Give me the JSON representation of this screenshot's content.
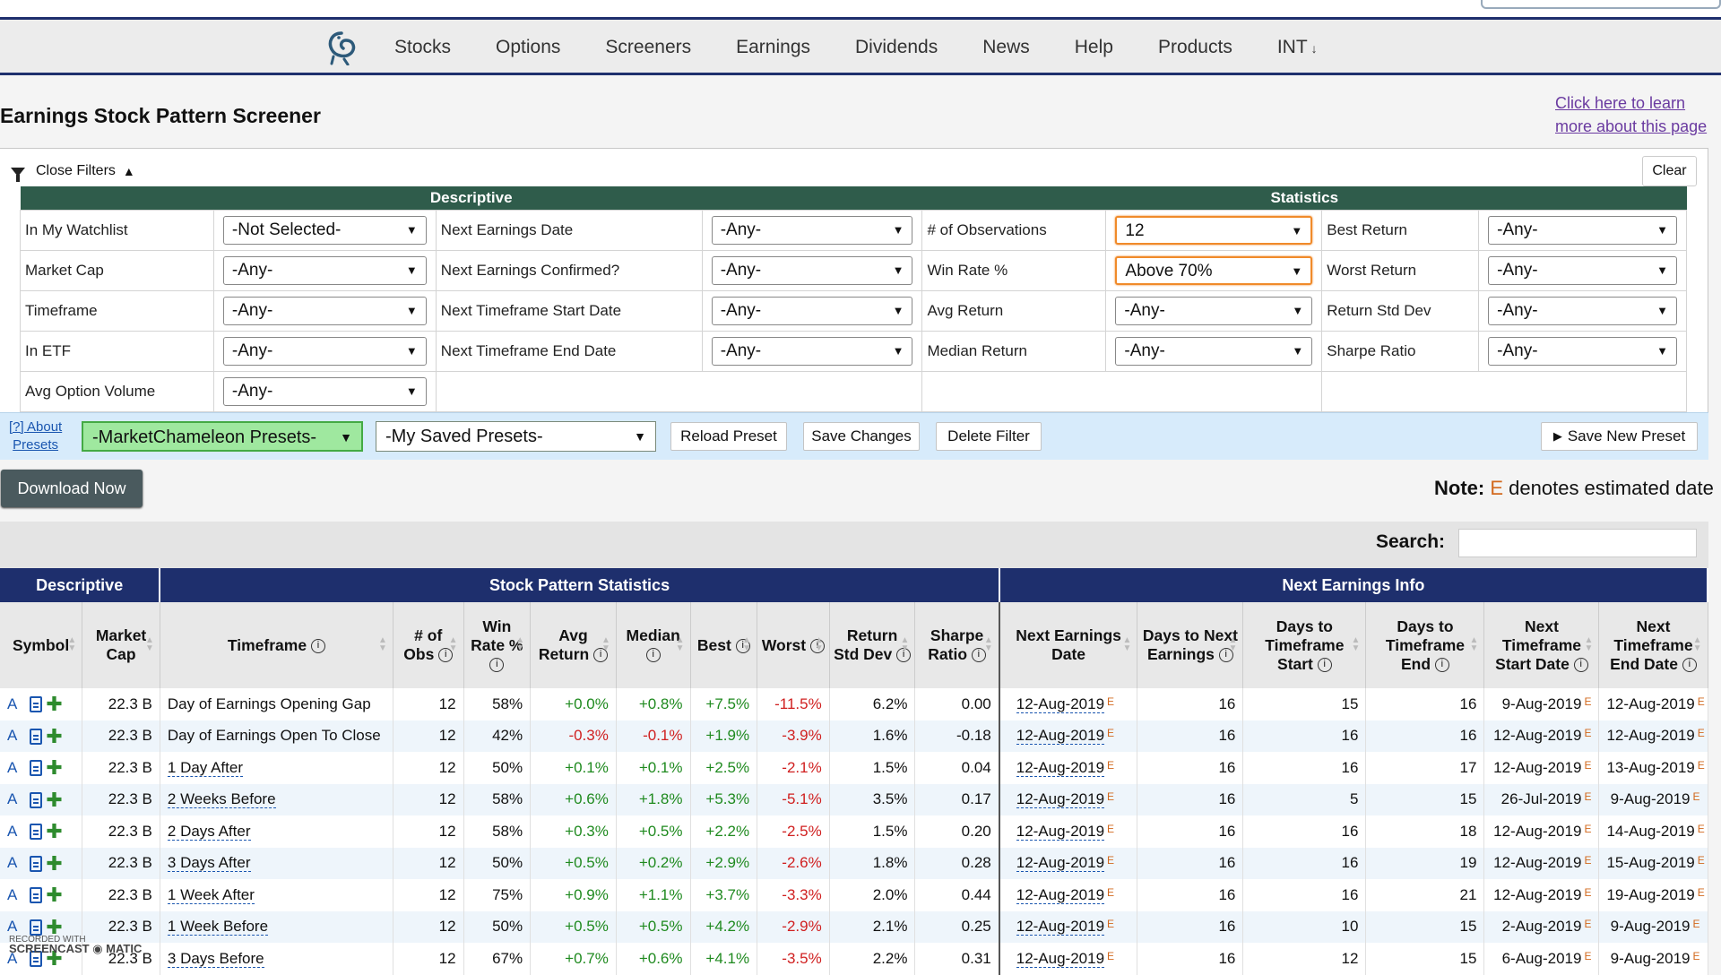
{
  "nav": {
    "items": [
      "Stocks",
      "Options",
      "Screeners",
      "Earnings",
      "Dividends",
      "News",
      "Help",
      "Products",
      "INT"
    ],
    "int_caret": "↓"
  },
  "page": {
    "title": "Earnings Stock Pattern Screener",
    "learn_link": "Click here to learn more about this page"
  },
  "filters": {
    "close_label": "Close Filters",
    "clear_label": "Clear",
    "headers": {
      "descriptive": "Descriptive",
      "statistics": "Statistics"
    },
    "rows": [
      [
        {
          "label": "In My Watchlist",
          "value": "-Not Selected-"
        },
        {
          "label": "Next Earnings Date",
          "value": "-Any-"
        },
        {
          "label": "# of Observations",
          "value": "12"
        },
        {
          "label": "Best Return",
          "value": "-Any-"
        }
      ],
      [
        {
          "label": "Market Cap",
          "value": "-Any-"
        },
        {
          "label": "Next Earnings Confirmed?",
          "value": "-Any-"
        },
        {
          "label": "Win Rate %",
          "value": "Above 70%"
        },
        {
          "label": "Worst Return",
          "value": "-Any-"
        }
      ],
      [
        {
          "label": "Timeframe",
          "value": "-Any-"
        },
        {
          "label": "Next Timeframe Start Date",
          "value": "-Any-"
        },
        {
          "label": "Avg Return",
          "value": "-Any-"
        },
        {
          "label": "Return Std Dev",
          "value": "-Any-"
        }
      ],
      [
        {
          "label": "In ETF",
          "value": "-Any-"
        },
        {
          "label": "Next Timeframe End Date",
          "value": "-Any-"
        },
        {
          "label": "Median Return",
          "value": "-Any-"
        },
        {
          "label": "Sharpe Ratio",
          "value": "-Any-"
        }
      ],
      [
        {
          "label": "Avg Option Volume",
          "value": "-Any-"
        }
      ]
    ],
    "presets": {
      "about_line1": "[?] About",
      "about_line2": "Presets",
      "mc_presets": "-MarketChameleon Presets-",
      "saved_presets": "-My Saved Presets-",
      "reload": "Reload Preset",
      "save_changes": "Save Changes",
      "delete": "Delete Filter",
      "save_new": "Save New Preset"
    }
  },
  "download_label": "Download Now",
  "note": {
    "prefix": "Note:",
    "mark": "E",
    "text": "denotes estimated date"
  },
  "search_label": "Search:",
  "results": {
    "groups": [
      "Descriptive",
      "Stock Pattern Statistics",
      "Next Earnings Info"
    ],
    "columns": [
      "Symbol",
      "Market Cap",
      "Timeframe",
      "# of Obs",
      "Win Rate %",
      "Avg Return",
      "Median",
      "Best",
      "Worst",
      "Return Std Dev",
      "Sharpe Ratio",
      "Next Earnings Date",
      "Days to Next Earnings",
      "Days to Timeframe Start",
      "Days to Timeframe End",
      "Next Timeframe Start Date",
      "Next Timeframe End Date"
    ],
    "rows": [
      [
        "A",
        "22.3 B",
        "Day of Earnings Opening Gap",
        "12",
        "58%",
        "+0.0%",
        "+0.8%",
        "+7.5%",
        "-11.5%",
        "6.2%",
        "0.00",
        "12-Aug-2019",
        "16",
        "15",
        "16",
        "9-Aug-2019",
        "12-Aug-2019"
      ],
      [
        "A",
        "22.3 B",
        "Day of Earnings Open To Close",
        "12",
        "42%",
        "-0.3%",
        "-0.1%",
        "+1.9%",
        "-3.9%",
        "1.6%",
        "-0.18",
        "12-Aug-2019",
        "16",
        "16",
        "16",
        "12-Aug-2019",
        "12-Aug-2019"
      ],
      [
        "A",
        "22.3 B",
        "1 Day After",
        "12",
        "50%",
        "+0.1%",
        "+0.1%",
        "+2.5%",
        "-2.1%",
        "1.5%",
        "0.04",
        "12-Aug-2019",
        "16",
        "16",
        "17",
        "12-Aug-2019",
        "13-Aug-2019"
      ],
      [
        "A",
        "22.3 B",
        "2 Weeks Before",
        "12",
        "58%",
        "+0.6%",
        "+1.8%",
        "+5.3%",
        "-5.1%",
        "3.5%",
        "0.17",
        "12-Aug-2019",
        "16",
        "5",
        "15",
        "26-Jul-2019",
        "9-Aug-2019"
      ],
      [
        "A",
        "22.3 B",
        "2 Days After",
        "12",
        "58%",
        "+0.3%",
        "+0.5%",
        "+2.2%",
        "-2.5%",
        "1.5%",
        "0.20",
        "12-Aug-2019",
        "16",
        "16",
        "18",
        "12-Aug-2019",
        "14-Aug-2019"
      ],
      [
        "A",
        "22.3 B",
        "3 Days After",
        "12",
        "50%",
        "+0.5%",
        "+0.2%",
        "+2.9%",
        "-2.6%",
        "1.8%",
        "0.28",
        "12-Aug-2019",
        "16",
        "16",
        "19",
        "12-Aug-2019",
        "15-Aug-2019"
      ],
      [
        "A",
        "22.3 B",
        "1 Week After",
        "12",
        "75%",
        "+0.9%",
        "+1.1%",
        "+3.7%",
        "-3.3%",
        "2.0%",
        "0.44",
        "12-Aug-2019",
        "16",
        "16",
        "21",
        "12-Aug-2019",
        "19-Aug-2019"
      ],
      [
        "A",
        "22.3 B",
        "1 Week Before",
        "12",
        "50%",
        "+0.5%",
        "+0.5%",
        "+4.2%",
        "-2.9%",
        "2.1%",
        "0.25",
        "12-Aug-2019",
        "16",
        "10",
        "15",
        "2-Aug-2019",
        "9-Aug-2019"
      ],
      [
        "A",
        "22.3 B",
        "3 Days Before",
        "12",
        "67%",
        "+0.7%",
        "+0.6%",
        "+4.1%",
        "-3.5%",
        "2.2%",
        "0.31",
        "12-Aug-2019",
        "16",
        "12",
        "15",
        "6-Aug-2019",
        "9-Aug-2019"
      ]
    ]
  },
  "watermark": {
    "line1": "RECORDED WITH",
    "line2": "SCREENCAST",
    "line3": "MATIC"
  },
  "colors": {
    "nav_border": "#1e2f6d",
    "filter_header": "#2f5c4b",
    "positive": "#1f8a1f",
    "negative": "#d02020",
    "estimate": "#d2691e"
  }
}
